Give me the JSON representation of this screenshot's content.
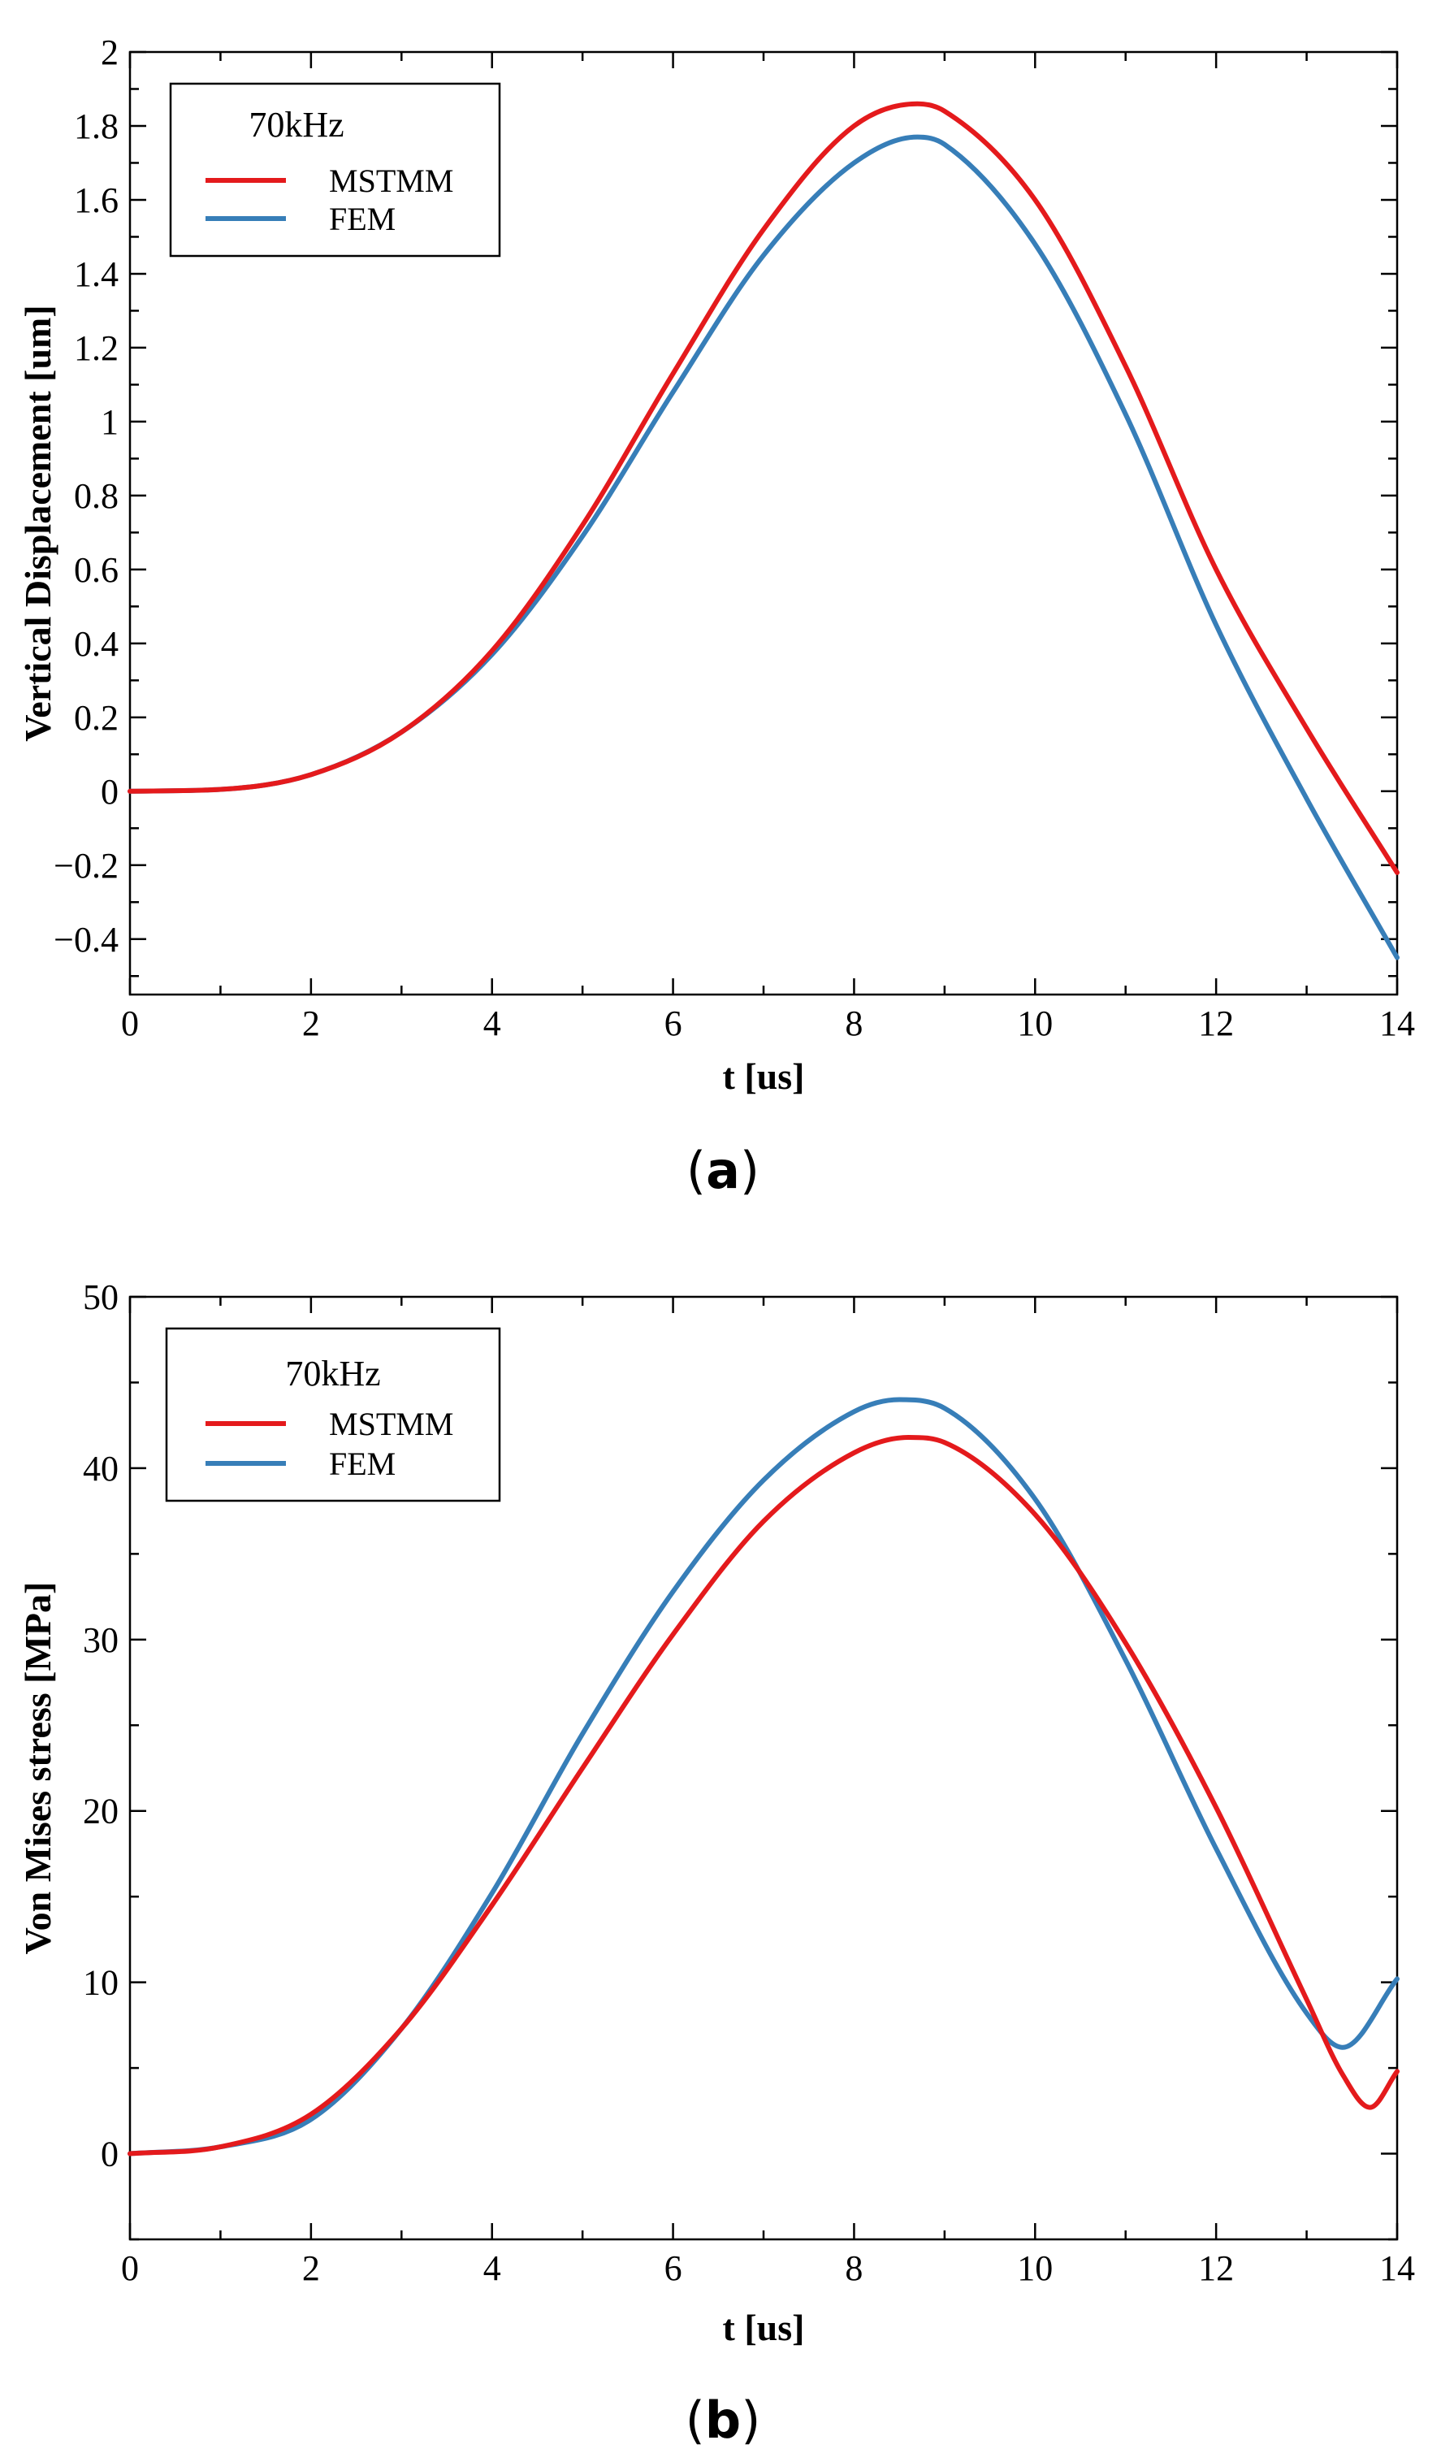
{
  "chart_data": [
    {
      "id": "a",
      "type": "line",
      "caption": "a",
      "xlabel": "t [us]",
      "ylabel": "Vertical Displacement [um]",
      "xlim": [
        0,
        14
      ],
      "ylim": [
        -0.55,
        2
      ],
      "xticks": [
        0,
        2,
        4,
        6,
        8,
        10,
        12,
        14
      ],
      "xtick_labels": [
        "0",
        "2",
        "4",
        "6",
        "8",
        "10",
        "12",
        "14"
      ],
      "xminor": [
        1,
        3,
        5,
        7,
        9,
        11,
        13
      ],
      "yticks": [
        -0.4,
        -0.2,
        0,
        0.2,
        0.4,
        0.6,
        0.8,
        1,
        1.2,
        1.4,
        1.6,
        1.8,
        2
      ],
      "ytick_labels": [
        "−0.4",
        "−0.2",
        "0",
        "0.2",
        "0.4",
        "0.6",
        "0.8",
        "1",
        "1.2",
        "1.4",
        "1.6",
        "1.8",
        "2"
      ],
      "yminor": [
        -0.5,
        -0.3,
        -0.1,
        0.1,
        0.3,
        0.5,
        0.7,
        0.9,
        1.1,
        1.3,
        1.5,
        1.7,
        1.9
      ],
      "legend": {
        "title": "70kHz",
        "position": "top-left"
      },
      "series": [
        {
          "name": "MSTMM",
          "color": "#e41a1c",
          "x": [
            0,
            1,
            2,
            3,
            4,
            5,
            6,
            7,
            8,
            8.7,
            9,
            10,
            11,
            12,
            13,
            14
          ],
          "y": [
            0,
            0.005,
            0.045,
            0.16,
            0.38,
            0.72,
            1.13,
            1.52,
            1.8,
            1.86,
            1.84,
            1.6,
            1.15,
            0.6,
            0.17,
            -0.22
          ]
        },
        {
          "name": "FEM",
          "color": "#377eb8",
          "x": [
            0,
            1,
            2,
            3,
            4,
            5,
            6,
            7,
            8,
            8.7,
            9,
            10,
            11,
            12,
            13,
            14
          ],
          "y": [
            0,
            0.005,
            0.045,
            0.16,
            0.37,
            0.69,
            1.08,
            1.45,
            1.7,
            1.77,
            1.75,
            1.48,
            1.02,
            0.45,
            -0.02,
            -0.45
          ]
        }
      ]
    },
    {
      "id": "b",
      "type": "line",
      "caption": "b",
      "xlabel": "t [us]",
      "ylabel": "Von Mises stress [MPa]",
      "xlim": [
        0,
        14
      ],
      "ylim": [
        -5,
        50
      ],
      "xticks": [
        0,
        2,
        4,
        6,
        8,
        10,
        12,
        14
      ],
      "xtick_labels": [
        "0",
        "2",
        "4",
        "6",
        "8",
        "10",
        "12",
        "14"
      ],
      "xminor": [
        1,
        3,
        5,
        7,
        9,
        11,
        13
      ],
      "yticks": [
        0,
        10,
        20,
        30,
        40,
        50
      ],
      "ytick_labels": [
        "0",
        "10",
        "20",
        "30",
        "40",
        "50"
      ],
      "yminor": [
        -5,
        5,
        15,
        25,
        35,
        45
      ],
      "legend": {
        "title": "70kHz",
        "position": "top-left"
      },
      "series": [
        {
          "name": "MSTMM",
          "color": "#e41a1c",
          "x": [
            0,
            1,
            2,
            3,
            4,
            5,
            6,
            7,
            8,
            8.6,
            9,
            10,
            11,
            12,
            13,
            13.4,
            13.7,
            14
          ],
          "y": [
            0,
            0.4,
            2.3,
            7.3,
            14.5,
            22.5,
            30.3,
            36.9,
            40.9,
            41.8,
            41.5,
            37.3,
            29.8,
            20.2,
            9.0,
            4.6,
            2.7,
            4.8
          ]
        },
        {
          "name": "FEM",
          "color": "#377eb8",
          "x": [
            0,
            1,
            2,
            3,
            4,
            5,
            6,
            7,
            8,
            8.5,
            9,
            10,
            11,
            12,
            13,
            13.4,
            14
          ],
          "y": [
            0,
            0.4,
            2.0,
            7.3,
            15.2,
            24.5,
            32.8,
            39.3,
            43.3,
            44.0,
            43.5,
            38.2,
            28.8,
            17.8,
            8.2,
            6.2,
            10.2
          ]
        }
      ]
    }
  ]
}
